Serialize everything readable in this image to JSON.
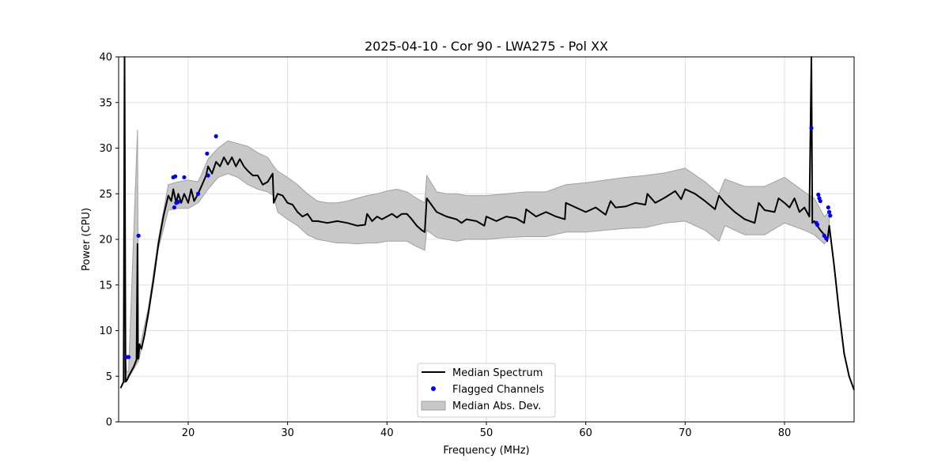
{
  "chart_data": {
    "type": "line",
    "title": "2025-04-10 - Cor 90 - LWA275 - Pol XX",
    "xlabel": "Frequency (MHz)",
    "ylabel": "Power (CPU)",
    "xlim": [
      13,
      87
    ],
    "ylim": [
      0,
      40
    ],
    "xticks": [
      20,
      30,
      40,
      50,
      60,
      70,
      80
    ],
    "yticks": [
      0,
      5,
      10,
      15,
      20,
      25,
      30,
      35,
      40
    ],
    "grid": true,
    "legend_position": "lower center",
    "colors": {
      "median": "#000000",
      "flagged": "#0000ff",
      "mad_fill": "#c8c8c8",
      "mad_edge": "#a0a0a0",
      "grid": "#e0e0e0"
    },
    "series": [
      {
        "name": "Median Spectrum",
        "kind": "line",
        "x": [
          13.2,
          13.5,
          13.6,
          13.7,
          13.8,
          13.9,
          14.0,
          14.2,
          14.5,
          14.8,
          14.9,
          14.95,
          15.0,
          15.1,
          15.3,
          15.6,
          16.0,
          16.5,
          17.0,
          17.5,
          18.0,
          18.3,
          18.5,
          18.8,
          19.0,
          19.3,
          19.6,
          20.0,
          20.3,
          20.6,
          21.0,
          21.4,
          21.8,
          22.0,
          22.4,
          22.8,
          23.2,
          23.6,
          24.0,
          24.4,
          24.8,
          25.2,
          25.6,
          26.0,
          26.5,
          27.0,
          27.5,
          28.0,
          28.5,
          28.6,
          29.0,
          29.5,
          30.0,
          30.5,
          31.0,
          31.5,
          32.0,
          32.5,
          33.0,
          34.0,
          35.0,
          36.0,
          37.0,
          37.8,
          38.0,
          38.5,
          39.0,
          39.5,
          40.0,
          40.5,
          41.0,
          41.5,
          42.0,
          42.5,
          43.0,
          43.5,
          43.8,
          44.0,
          45.0,
          46.0,
          47.0,
          47.5,
          48.0,
          49.0,
          49.8,
          50.0,
          51.0,
          52.0,
          53.0,
          53.8,
          54.0,
          55.0,
          56.0,
          57.0,
          57.9,
          58.0,
          59.0,
          60.0,
          61.0,
          62.0,
          62.5,
          63.0,
          64.0,
          65.0,
          66.0,
          66.2,
          67.0,
          68.0,
          69.0,
          69.6,
          70.0,
          71.0,
          72.0,
          73.0,
          73.4,
          74.0,
          75.0,
          76.0,
          77.0,
          77.4,
          78.0,
          79.0,
          79.4,
          80.0,
          80.5,
          81.0,
          81.5,
          82.0,
          82.5,
          82.7,
          82.8,
          83.0,
          83.3,
          83.6,
          84.0,
          84.3,
          84.5,
          85.0,
          85.5,
          86.0,
          86.5,
          87.0
        ],
        "y": [
          3.7,
          4.4,
          40.0,
          4.4,
          4.5,
          4.7,
          5.0,
          5.4,
          6.0,
          6.8,
          19.5,
          6.9,
          7.0,
          8.5,
          8.0,
          9.5,
          12.0,
          15.5,
          19.5,
          22.5,
          24.8,
          24.2,
          25.5,
          24.0,
          25.0,
          24.0,
          25.0,
          24.0,
          25.5,
          24.2,
          25.0,
          26.0,
          27.0,
          28.0,
          27.2,
          28.5,
          28.0,
          29.0,
          28.2,
          29.0,
          28.0,
          28.8,
          28.0,
          27.5,
          27.0,
          27.0,
          26.0,
          26.3,
          27.2,
          24.0,
          25.0,
          24.8,
          24.0,
          23.8,
          23.0,
          22.5,
          22.8,
          22.0,
          22.0,
          21.8,
          22.0,
          21.8,
          21.5,
          21.6,
          22.8,
          22.0,
          22.5,
          22.2,
          22.5,
          22.8,
          22.4,
          22.8,
          22.8,
          22.2,
          21.5,
          21.0,
          20.8,
          24.5,
          23.0,
          22.5,
          22.2,
          21.8,
          22.2,
          22.0,
          21.5,
          22.5,
          22.0,
          22.5,
          22.3,
          21.8,
          23.3,
          22.5,
          23.0,
          22.5,
          22.2,
          24.0,
          23.5,
          23.0,
          23.5,
          22.7,
          24.2,
          23.5,
          23.6,
          24.0,
          23.8,
          25.0,
          24.0,
          24.6,
          25.3,
          24.4,
          25.5,
          25.0,
          24.2,
          23.3,
          24.8,
          24.0,
          23.0,
          22.2,
          21.8,
          24.0,
          23.2,
          23.0,
          24.5,
          24.0,
          23.5,
          24.5,
          23.0,
          23.5,
          22.5,
          40.0,
          21.8,
          22.0,
          21.5,
          21.0,
          20.5,
          19.8,
          21.5,
          17.0,
          12.0,
          7.5,
          5.0,
          3.5
        ]
      },
      {
        "name": "Median Abs. Dev.",
        "kind": "band",
        "x": [
          13.6,
          13.8,
          14.0,
          14.9,
          15.0,
          16.0,
          17.0,
          18.0,
          19.0,
          20.0,
          21.0,
          22.0,
          23.0,
          24.0,
          25.0,
          26.0,
          27.0,
          28.0,
          28.6,
          29.0,
          30.0,
          31.0,
          32.0,
          33.0,
          34.0,
          35.0,
          36.0,
          37.0,
          38.0,
          39.0,
          40.0,
          41.0,
          42.0,
          43.0,
          43.8,
          44.0,
          45.0,
          46.0,
          47.0,
          48.0,
          50.0,
          52.0,
          54.0,
          56.0,
          58.0,
          60.0,
          62.0,
          64.0,
          66.0,
          68.0,
          70.0,
          72.0,
          73.4,
          74.0,
          76.0,
          78.0,
          80.0,
          82.0,
          83.0,
          84.0,
          84.5
        ],
        "low": [
          4.3,
          4.5,
          4.8,
          6.5,
          6.6,
          11.5,
          19.0,
          23.2,
          23.4,
          23.4,
          24.0,
          25.5,
          26.8,
          27.2,
          26.8,
          26.0,
          25.5,
          25.2,
          24.8,
          23.0,
          22.2,
          21.5,
          20.5,
          20.0,
          19.8,
          19.6,
          19.6,
          19.5,
          19.6,
          19.6,
          19.8,
          19.8,
          19.8,
          19.2,
          18.8,
          21.0,
          20.2,
          20.0,
          19.8,
          20.0,
          20.0,
          20.2,
          20.3,
          20.3,
          20.8,
          20.8,
          21.0,
          21.2,
          21.3,
          21.8,
          22.0,
          21.0,
          19.8,
          21.5,
          20.5,
          20.5,
          21.8,
          21.0,
          20.5,
          19.5,
          20.2
        ],
        "high": [
          9.0,
          5.5,
          5.5,
          32.0,
          7.5,
          12.5,
          20.0,
          26.0,
          26.3,
          26.5,
          26.3,
          28.8,
          30.0,
          30.8,
          30.5,
          30.2,
          29.5,
          29.0,
          28.0,
          27.5,
          26.8,
          26.0,
          25.0,
          24.2,
          24.0,
          24.0,
          24.2,
          24.5,
          24.8,
          25.0,
          25.3,
          25.5,
          25.2,
          24.5,
          24.0,
          27.0,
          25.2,
          25.0,
          25.0,
          24.8,
          24.8,
          25.0,
          25.2,
          25.2,
          26.0,
          26.2,
          26.5,
          26.8,
          27.0,
          27.3,
          27.8,
          26.3,
          25.0,
          26.6,
          25.8,
          25.8,
          26.8,
          25.2,
          24.5,
          22.5,
          23.0
        ]
      },
      {
        "name": "Flagged Channels",
        "kind": "scatter",
        "x": [
          13.8,
          14.0,
          15.0,
          18.5,
          18.7,
          18.6,
          18.8,
          19.0,
          19.6,
          21.0,
          21.9,
          22.0,
          22.8,
          82.7,
          83.2,
          83.4,
          83.5,
          83.6,
          83.3,
          84.0,
          84.2,
          84.4,
          84.5,
          84.6
        ],
        "y": [
          7.1,
          7.1,
          20.4,
          26.8,
          26.9,
          23.5,
          24.0,
          24.1,
          26.8,
          25.0,
          29.4,
          27.0,
          31.3,
          32.2,
          21.8,
          24.9,
          24.5,
          24.2,
          21.6,
          20.4,
          20.1,
          23.5,
          23.0,
          22.6
        ]
      }
    ]
  }
}
